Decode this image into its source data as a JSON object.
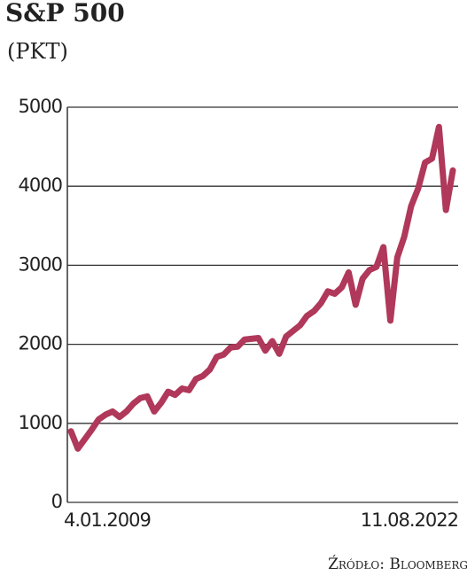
{
  "chart_data": {
    "type": "line",
    "title": "S&P 500",
    "subtitle": "(PKT)",
    "source": "Źródło: Bloomberg",
    "categories": [
      "4.01.2009",
      null,
      null,
      null,
      null,
      null,
      null,
      null,
      null,
      null,
      null,
      null,
      null,
      null,
      null,
      null,
      null,
      null,
      null,
      null,
      null,
      null,
      null,
      null,
      null,
      null,
      null,
      null,
      null,
      null,
      null,
      null,
      null,
      null,
      null,
      null,
      null,
      null,
      null,
      null,
      null,
      null,
      null,
      null,
      null,
      null,
      null,
      null,
      null,
      null,
      null,
      null,
      null,
      null,
      null,
      "11.08.2022"
    ],
    "series": [
      {
        "name": "S&P 500",
        "color": "#b0385a",
        "values": [
          900,
          680,
          800,
          920,
          1050,
          1110,
          1150,
          1080,
          1150,
          1250,
          1320,
          1340,
          1150,
          1260,
          1400,
          1360,
          1440,
          1420,
          1560,
          1600,
          1680,
          1840,
          1870,
          1960,
          1970,
          2060,
          2070,
          2080,
          1920,
          2040,
          1880,
          2100,
          2170,
          2240,
          2360,
          2420,
          2520,
          2670,
          2640,
          2720,
          2910,
          2500,
          2830,
          2940,
          2980,
          3230,
          2300,
          3100,
          3360,
          3750,
          3970,
          4300,
          4350,
          4750,
          3700,
          4200
        ]
      }
    ],
    "ylim": [
      0,
      5000
    ],
    "yticks": [
      0,
      1000,
      2000,
      3000,
      4000,
      5000
    ],
    "grid": true
  }
}
